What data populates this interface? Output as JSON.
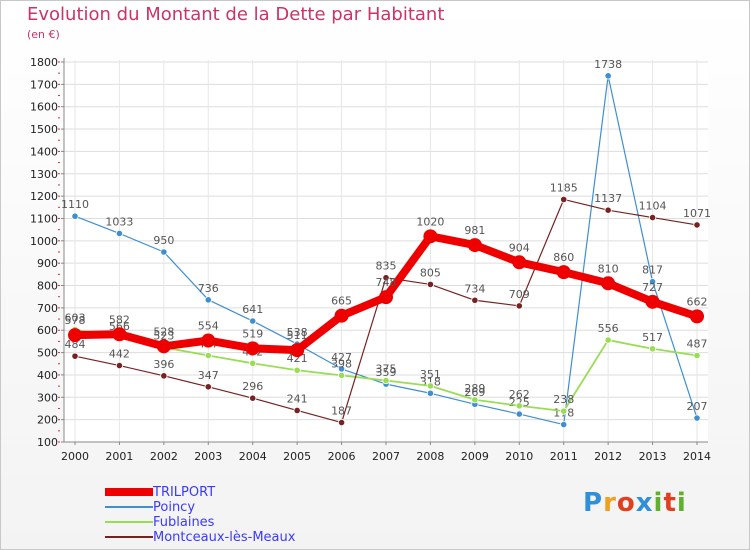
{
  "title": "Evolution du Montant de la Dette par Habitant",
  "subtitle": "(en €)",
  "logo": {
    "text": "Proxiti",
    "letters": [
      "P",
      "r",
      "o",
      "x",
      "i",
      "t",
      "i"
    ],
    "colors": [
      "#2f8fd8",
      "#f0a020",
      "#e04020",
      "#2f8fd8",
      "#60b030",
      "#e04020",
      "#60b030"
    ]
  },
  "chart_data": {
    "type": "line",
    "title": "Evolution du Montant de la Dette par Habitant",
    "subtitle": "(en €)",
    "xlabel": "",
    "ylabel": "",
    "x": [
      "2000",
      "2001",
      "2002",
      "2003",
      "2004",
      "2005",
      "2006",
      "2007",
      "2008",
      "2009",
      "2010",
      "2011",
      "2012",
      "2013",
      "2014"
    ],
    "yticks": [
      100,
      200,
      300,
      400,
      500,
      600,
      700,
      800,
      900,
      1000,
      1100,
      1200,
      1300,
      1400,
      1500,
      1600,
      1700,
      1800
    ],
    "ylim": [
      100,
      1800
    ],
    "grid": true,
    "legend": "bottom-left",
    "series": [
      {
        "name": "TRILPORT",
        "color": "#ee0000",
        "width": 8,
        "values": [
          578,
          582,
          528,
          554,
          519,
          511,
          665,
          748,
          1020,
          981,
          904,
          860,
          810,
          727,
          662
        ]
      },
      {
        "name": "Poincy",
        "color": "#3f8fd0",
        "width": 1.2,
        "values": [
          1110,
          1033,
          950,
          736,
          641,
          538,
          427,
          359,
          318,
          269,
          225,
          178,
          1738,
          817,
          207
        ]
      },
      {
        "name": "Fublaines",
        "color": "#99dd55",
        "width": 1.8,
        "values": [
          603,
          566,
          523,
          487,
          452,
          421,
          398,
          375,
          351,
          289,
          262,
          238,
          556,
          517,
          487
        ]
      },
      {
        "name": "Montceaux-lès-Meaux",
        "color": "#772222",
        "width": 1.2,
        "values": [
          484,
          442,
          396,
          347,
          296,
          241,
          187,
          835,
          805,
          734,
          709,
          1185,
          1137,
          1104,
          1071
        ]
      }
    ]
  }
}
